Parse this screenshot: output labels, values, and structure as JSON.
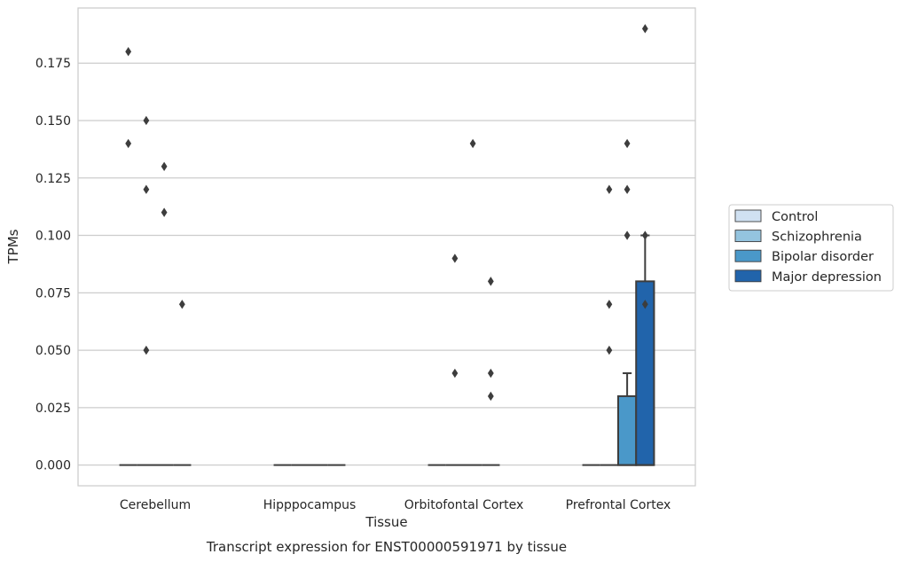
{
  "chart_data": {
    "type": "box",
    "title": "Transcript expression for ENST00000591971 by tissue",
    "xlabel": "Tissue",
    "ylabel": "TPMs",
    "ylim": [
      -0.009,
      0.199
    ],
    "yticks": [
      0.0,
      0.025,
      0.05,
      0.075,
      0.1,
      0.125,
      0.15,
      0.175
    ],
    "ytick_labels": [
      "0.000",
      "0.025",
      "0.050",
      "0.075",
      "0.100",
      "0.125",
      "0.150",
      "0.175"
    ],
    "categories": [
      "Cerebellum",
      "Hipppocampus",
      "Orbitofontal Cortex",
      "Prefrontal Cortex"
    ],
    "grid": "y",
    "legend_position": "right",
    "series": [
      {
        "name": "Control",
        "color": "#d0e1f2",
        "boxes": [
          {
            "q1": 0,
            "median": 0,
            "q3": 0,
            "whisker_low": 0,
            "whisker_high": 0,
            "outliers": [
              0.18,
              0.14
            ]
          },
          {
            "q1": 0,
            "median": 0,
            "q3": 0,
            "whisker_low": 0,
            "whisker_high": 0,
            "outliers": []
          },
          {
            "q1": 0,
            "median": 0,
            "q3": 0,
            "whisker_low": 0,
            "whisker_high": 0,
            "outliers": []
          },
          {
            "q1": 0,
            "median": 0,
            "q3": 0,
            "whisker_low": 0,
            "whisker_high": 0,
            "outliers": []
          }
        ]
      },
      {
        "name": "Schizophrenia",
        "color": "#94c4df",
        "boxes": [
          {
            "q1": 0,
            "median": 0,
            "q3": 0,
            "whisker_low": 0,
            "whisker_high": 0,
            "outliers": [
              0.15,
              0.12,
              0.05
            ]
          },
          {
            "q1": 0,
            "median": 0,
            "q3": 0,
            "whisker_low": 0,
            "whisker_high": 0,
            "outliers": []
          },
          {
            "q1": 0,
            "median": 0,
            "q3": 0,
            "whisker_low": 0,
            "whisker_high": 0,
            "outliers": [
              0.09,
              0.04
            ]
          },
          {
            "q1": 0,
            "median": 0,
            "q3": 0,
            "whisker_low": 0,
            "whisker_high": 0,
            "outliers": [
              0.12,
              0.07,
              0.05
            ]
          }
        ]
      },
      {
        "name": "Bipolar disorder",
        "color": "#4a98c9",
        "boxes": [
          {
            "q1": 0,
            "median": 0,
            "q3": 0,
            "whisker_low": 0,
            "whisker_high": 0,
            "outliers": [
              0.13,
              0.11
            ]
          },
          {
            "q1": 0,
            "median": 0,
            "q3": 0,
            "whisker_low": 0,
            "whisker_high": 0,
            "outliers": []
          },
          {
            "q1": 0,
            "median": 0,
            "q3": 0,
            "whisker_low": 0,
            "whisker_high": 0,
            "outliers": [
              0.14
            ]
          },
          {
            "q1": 0,
            "median": 0,
            "q3": 0.03,
            "whisker_low": 0,
            "whisker_high": 0.04,
            "outliers": [
              0.14,
              0.12,
              0.1
            ]
          }
        ]
      },
      {
        "name": "Major depression",
        "color": "#2164ab",
        "boxes": [
          {
            "q1": 0,
            "median": 0,
            "q3": 0,
            "whisker_low": 0,
            "whisker_high": 0,
            "outliers": [
              0.07
            ]
          },
          {
            "q1": 0,
            "median": 0,
            "q3": 0,
            "whisker_low": 0,
            "whisker_high": 0,
            "outliers": []
          },
          {
            "q1": 0,
            "median": 0,
            "q3": 0,
            "whisker_low": 0,
            "whisker_high": 0,
            "outliers": [
              0.08,
              0.04,
              0.03
            ]
          },
          {
            "q1": 0,
            "median": 0,
            "q3": 0.08,
            "whisker_low": 0,
            "whisker_high": 0.1,
            "outliers": [
              0.19,
              0.1,
              0.07
            ]
          }
        ]
      }
    ]
  }
}
